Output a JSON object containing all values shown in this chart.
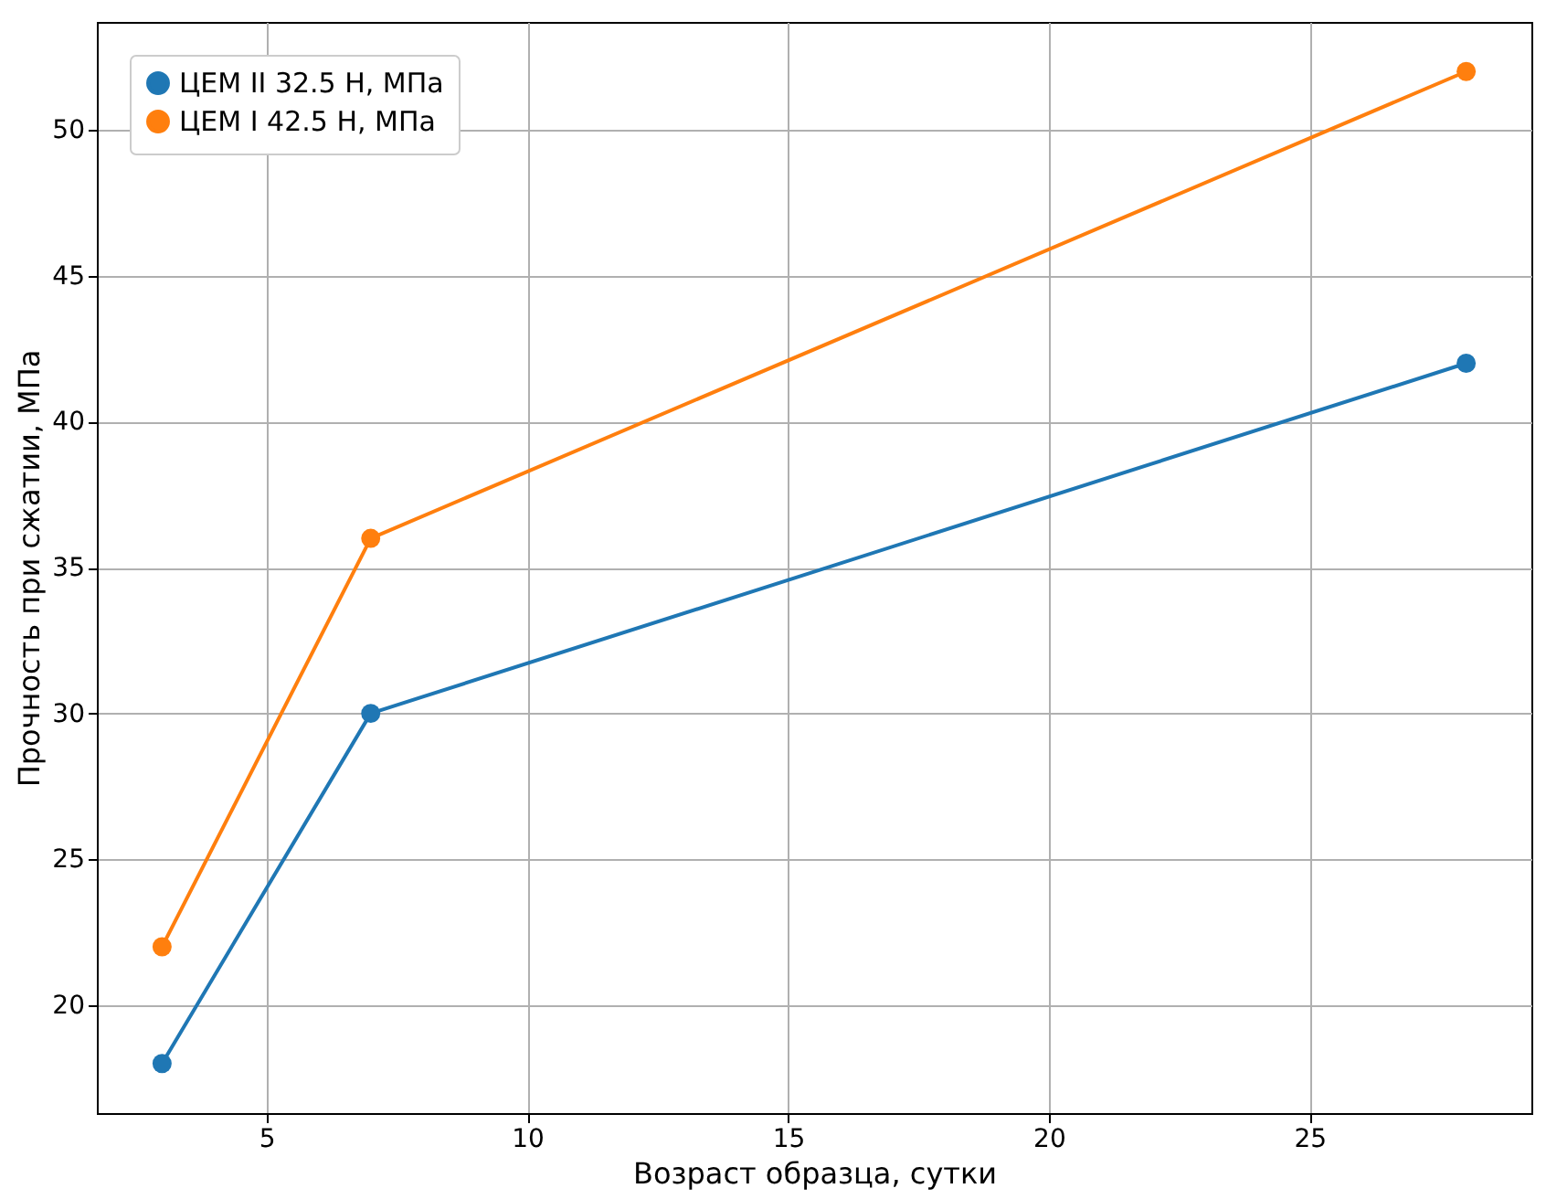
{
  "chart_data": {
    "type": "line",
    "xlabel": "Возраст образца, сутки",
    "ylabel": "Прочность при сжатии, МПа",
    "x": [
      3,
      7,
      28
    ],
    "series": [
      {
        "name": "ЦЕМ II 32.5 Н, МПа",
        "color": "#1f77b4",
        "values": [
          18,
          30,
          42
        ]
      },
      {
        "name": "ЦЕМ I 42.5 Н, МПа",
        "color": "#ff7f0e",
        "values": [
          22,
          36,
          52
        ]
      }
    ],
    "xlim": [
      1.75,
      29.25
    ],
    "ylim": [
      16.3,
      53.7
    ],
    "xticks": [
      5,
      10,
      15,
      20,
      25
    ],
    "yticks": [
      20,
      25,
      30,
      35,
      40,
      45,
      50
    ],
    "grid": true,
    "legend": "top left",
    "marker": "circle",
    "line_style": "solid"
  }
}
